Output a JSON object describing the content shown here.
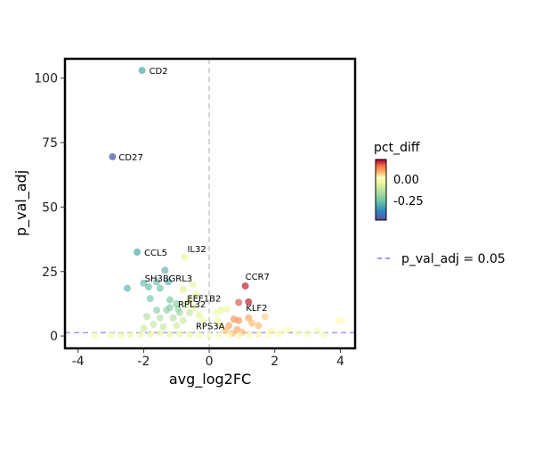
{
  "chart_data": {
    "type": "scatter",
    "xlabel": "avg_log2FC",
    "ylabel": "p_val_adj",
    "xlim": [
      -4.4,
      4.45
    ],
    "ylim": [
      -4.8,
      107.5
    ],
    "xticks": [
      -4,
      -2,
      0,
      2,
      4
    ],
    "xtick_labels": [
      "-4",
      "-2",
      "0",
      "2",
      "4"
    ],
    "yticks": [
      0,
      25,
      50,
      75,
      100
    ],
    "ytick_labels": [
      "0",
      "25",
      "50",
      "75",
      "100"
    ],
    "grid": false,
    "vline_x": 0,
    "hline_y": 1.3,
    "legend": {
      "placement": "right",
      "color_title": "pct_diff",
      "color_range": [
        -0.48,
        0.23
      ],
      "color_ticks": [
        0.0,
        -0.25
      ],
      "color_tick_labels": [
        "0.00",
        "-0.25"
      ],
      "line_label": "p_val_adj = 0.05",
      "line_color": "#7b7bf0"
    },
    "labeled_points": [
      {
        "gene": "CD2",
        "x": -2.05,
        "y": 103,
        "pct_diff": -0.3
      },
      {
        "gene": "CD27",
        "x": -2.95,
        "y": 69.5,
        "pct_diff": -0.46
      },
      {
        "gene": "CCL5",
        "x": -2.2,
        "y": 32.5,
        "pct_diff": -0.3
      },
      {
        "gene": "IL32",
        "x": -0.75,
        "y": 30.5,
        "pct_diff": -0.04
      },
      {
        "gene": "SH3BGRL3",
        "x": -0.8,
        "y": 18,
        "pct_diff": -0.05
      },
      {
        "gene": "CCR7",
        "x": 1.1,
        "y": 19.4,
        "pct_diff": 0.2
      },
      {
        "gene": "EEF1B2",
        "x": 0.55,
        "y": 10.5,
        "pct_diff": -0.02
      },
      {
        "gene": "RPL32",
        "x": 0.35,
        "y": 10,
        "pct_diff": -0.03
      },
      {
        "gene": "RPS3A",
        "x": 0.35,
        "y": 4,
        "pct_diff": -0.03
      },
      {
        "gene": "KLF2",
        "x": 1.2,
        "y": 13.2,
        "pct_diff": 0.2
      }
    ],
    "points": [
      [
        -1.35,
        25.5,
        -0.3
      ],
      [
        -1.6,
        21,
        -0.28
      ],
      [
        -1.25,
        21,
        -0.3
      ],
      [
        -2.0,
        20.5,
        -0.28
      ],
      [
        -1.85,
        19,
        -0.28
      ],
      [
        -2.5,
        18.5,
        -0.3
      ],
      [
        -1.5,
        18.5,
        -0.27
      ],
      [
        -1.2,
        14,
        -0.25
      ],
      [
        -1.8,
        14.5,
        -0.25
      ],
      [
        -1.0,
        12.5,
        -0.22
      ],
      [
        -1.3,
        10,
        -0.2
      ],
      [
        -1.6,
        10,
        -0.22
      ],
      [
        -0.9,
        9,
        -0.18
      ],
      [
        -1.1,
        7,
        -0.15
      ],
      [
        -1.5,
        7,
        -0.15
      ],
      [
        -1.9,
        7.5,
        -0.15
      ],
      [
        -0.6,
        14,
        -0.08
      ],
      [
        -0.4,
        16,
        -0.05
      ],
      [
        -0.5,
        20,
        -0.05
      ],
      [
        -0.7,
        12,
        -0.1
      ],
      [
        -0.3,
        8,
        -0.05
      ],
      [
        -1.0,
        4,
        -0.1
      ],
      [
        -1.4,
        3.5,
        -0.12
      ],
      [
        -2.0,
        3,
        -0.1
      ],
      [
        -1.7,
        4.5,
        -0.12
      ],
      [
        -0.8,
        6,
        -0.1
      ],
      [
        -1.2,
        11,
        -0.22
      ],
      [
        -0.95,
        10.5,
        -0.2
      ],
      [
        -0.6,
        9,
        -0.12
      ],
      [
        -0.45,
        11,
        -0.06
      ],
      [
        -0.2,
        6,
        -0.03
      ],
      [
        0.2,
        9,
        -0.02
      ],
      [
        0.25,
        6,
        -0.02
      ],
      [
        0.9,
        13,
        0.18
      ],
      [
        0.75,
        6.5,
        0.12
      ],
      [
        0.9,
        6,
        0.12
      ],
      [
        1.2,
        7,
        0.1
      ],
      [
        0.6,
        4,
        0.1
      ],
      [
        0.85,
        2.5,
        0.1
      ],
      [
        1.3,
        5,
        0.08
      ],
      [
        1.5,
        4,
        0.08
      ],
      [
        1.7,
        7.5,
        0.06
      ],
      [
        0.5,
        2,
        0.08
      ],
      [
        1.0,
        1.5,
        0.08
      ],
      [
        0.7,
        1,
        0.08
      ],
      [
        -3.5,
        0.3,
        -0.02
      ],
      [
        -3.0,
        0.5,
        -0.02
      ],
      [
        -2.7,
        0.4,
        -0.03
      ],
      [
        -2.4,
        0.6,
        -0.03
      ],
      [
        -2.1,
        0.5,
        -0.04
      ],
      [
        -1.8,
        0.8,
        -0.05
      ],
      [
        -1.5,
        1,
        -0.06
      ],
      [
        -1.2,
        0.7,
        -0.05
      ],
      [
        -0.9,
        0.9,
        -0.04
      ],
      [
        -0.6,
        0.6,
        -0.03
      ],
      [
        -0.3,
        0.3,
        -0.01
      ],
      [
        0.0,
        0.2,
        0.0
      ],
      [
        0.3,
        0.3,
        0.01
      ],
      [
        0.6,
        0.5,
        0.02
      ],
      [
        0.9,
        0.4,
        0.03
      ],
      [
        1.2,
        0.7,
        0.03
      ],
      [
        1.5,
        0.6,
        0.03
      ],
      [
        1.8,
        0.5,
        0.02
      ],
      [
        2.1,
        0.8,
        0.02
      ],
      [
        2.4,
        2.5,
        0.01
      ],
      [
        2.7,
        1.2,
        0.0
      ],
      [
        3.0,
        0.8,
        0.0
      ],
      [
        3.3,
        2,
        0.0
      ],
      [
        3.5,
        0.5,
        0.0
      ],
      [
        3.95,
        6,
        0.02
      ],
      [
        4.05,
        6,
        0.02
      ],
      [
        2.2,
        1.5,
        0.02
      ],
      [
        1.9,
        1.8,
        0.03
      ]
    ]
  }
}
